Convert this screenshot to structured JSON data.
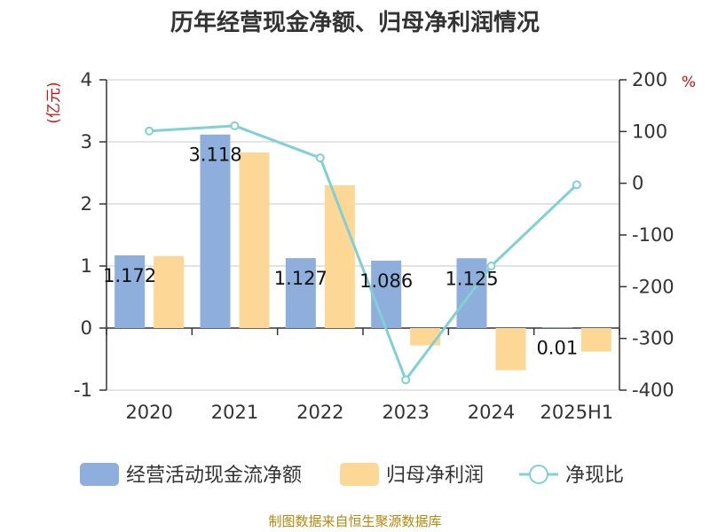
{
  "chart_data": {
    "type": "bar",
    "title": "历年经营现金净额、归母净利润情况",
    "source": "制图数据来自恒生聚源数据库",
    "categories": [
      "2020",
      "2021",
      "2022",
      "2023",
      "2024",
      "2025H1"
    ],
    "left_axis": {
      "unit": "(亿元)",
      "min": -1,
      "max": 4,
      "ticks": [
        "4",
        "3",
        "2",
        "1",
        "0",
        "-1"
      ]
    },
    "right_axis": {
      "unit": "%",
      "min": -400,
      "max": 200,
      "ticks": [
        "200",
        "100",
        "0",
        "-100",
        "-200",
        "-300",
        "-400"
      ]
    },
    "grid": true,
    "legend_position": "bottom",
    "series": [
      {
        "name": "经营活动现金流净额",
        "type": "bar",
        "axis": "left",
        "color": "#8eaedb",
        "values": [
          1.172,
          3.118,
          1.127,
          1.086,
          1.125,
          0.01
        ],
        "labels": [
          "1.172",
          "3.118",
          "1.127",
          "1.086",
          "1.125",
          "0.01"
        ]
      },
      {
        "name": "归母净利润",
        "type": "bar",
        "axis": "left",
        "color": "#fdd795",
        "values": [
          1.16,
          2.83,
          2.3,
          -0.28,
          -0.68,
          -0.38
        ]
      },
      {
        "name": "净现比",
        "type": "line",
        "axis": "right",
        "color": "#80d0d4",
        "values": [
          101,
          111,
          49,
          -380,
          -160,
          -3
        ]
      }
    ]
  }
}
